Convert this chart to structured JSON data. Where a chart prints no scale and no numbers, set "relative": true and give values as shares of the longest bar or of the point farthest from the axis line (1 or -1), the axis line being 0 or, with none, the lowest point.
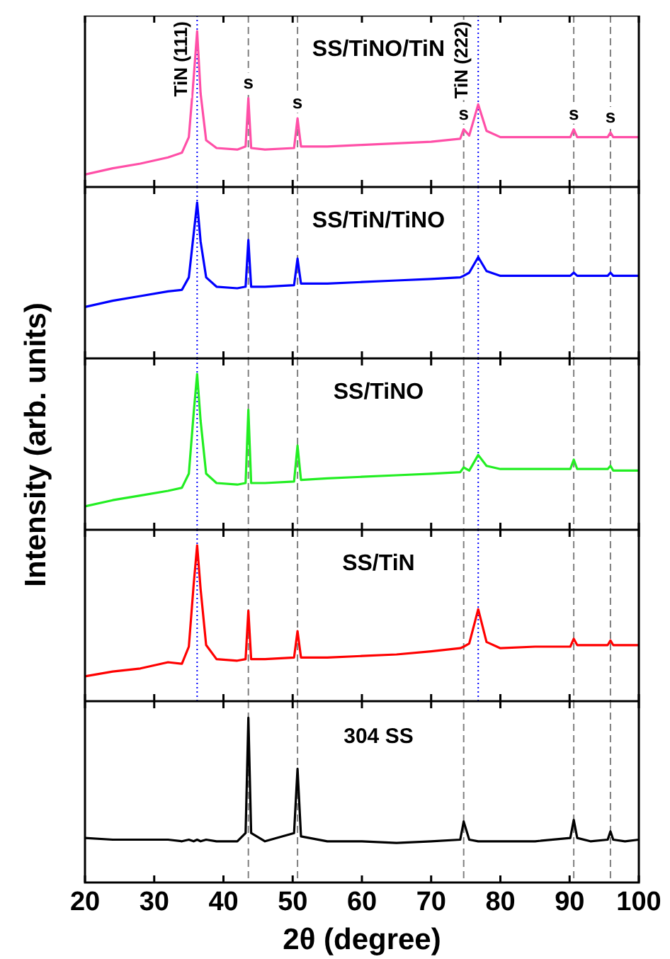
{
  "chart_data": [
    {
      "type": "line",
      "relative": true,
      "title": "SS/TiNO/TiN",
      "x": [
        20,
        24,
        28,
        32,
        34,
        35,
        35.7,
        36.2,
        36.7,
        37.5,
        39,
        42,
        43.2,
        43.6,
        44,
        46,
        50.2,
        50.7,
        51.2,
        55,
        60,
        65,
        70,
        74.2,
        74.7,
        75.5,
        76.8,
        78,
        80,
        85,
        90.1,
        90.6,
        91.1,
        93,
        95.5,
        95.9,
        96.3,
        98,
        100
      ],
      "series": [
        {
          "color": "#ff4fa7",
          "values": [
            0.08,
            0.12,
            0.15,
            0.19,
            0.22,
            0.32,
            0.7,
            1.0,
            0.6,
            0.3,
            0.25,
            0.24,
            0.26,
            0.57,
            0.25,
            0.24,
            0.25,
            0.44,
            0.26,
            0.26,
            0.27,
            0.28,
            0.29,
            0.31,
            0.37,
            0.33,
            0.53,
            0.36,
            0.32,
            0.32,
            0.32,
            0.37,
            0.32,
            0.32,
            0.32,
            0.35,
            0.32,
            0.32,
            0.32
          ]
        }
      ],
      "xlim": [
        20,
        100
      ],
      "xticks": [
        20,
        30,
        40,
        50,
        60,
        70,
        80,
        90,
        100
      ],
      "tick_labels": false,
      "ref_lines": [
        {
          "axis": "x",
          "value": 36.2,
          "color": "#0000ff",
          "line_style": "dotted"
        },
        {
          "axis": "x",
          "value": 43.6,
          "color": "#808080",
          "line_style": "dashed"
        },
        {
          "axis": "x",
          "value": 50.7,
          "color": "#808080",
          "line_style": "dashed"
        },
        {
          "axis": "x",
          "value": 74.7,
          "color": "#808080",
          "line_style": "dashed"
        },
        {
          "axis": "x",
          "value": 76.8,
          "color": "#0000ff",
          "line_style": "dotted"
        },
        {
          "axis": "x",
          "value": 90.6,
          "color": "#808080",
          "line_style": "dashed"
        },
        {
          "axis": "x",
          "value": 95.9,
          "color": "#808080",
          "line_style": "dashed"
        }
      ],
      "annotations": [
        {
          "text": "TiN (111)",
          "x": 36.2,
          "y": 1.0
        },
        {
          "text": "s",
          "x": 43.6,
          "y": 0.57
        },
        {
          "text": "s",
          "x": 50.7,
          "y": 0.44
        },
        {
          "text": "s",
          "x": 74.7,
          "y": 0.37
        },
        {
          "text": "TiN (222)",
          "x": 76.8,
          "y": 0.53
        },
        {
          "text": "s",
          "x": 90.6,
          "y": 0.37
        },
        {
          "text": "s",
          "x": 95.9,
          "y": 0.35
        }
      ]
    },
    {
      "type": "line",
      "relative": true,
      "title": "SS/TiN/TiNO",
      "x": [
        20,
        24,
        28,
        32,
        34,
        35,
        35.7,
        36.2,
        36.7,
        37.5,
        39,
        42,
        43.2,
        43.6,
        44,
        46,
        50.2,
        50.7,
        51.2,
        55,
        60,
        65,
        70,
        74.2,
        74.7,
        75.5,
        76.8,
        78,
        80,
        85,
        90.1,
        90.6,
        91.1,
        93,
        95.5,
        95.9,
        96.3,
        98,
        100
      ],
      "series": [
        {
          "color": "#0000ff",
          "values": [
            0.33,
            0.37,
            0.4,
            0.43,
            0.44,
            0.52,
            0.8,
            1.0,
            0.75,
            0.52,
            0.46,
            0.45,
            0.46,
            0.76,
            0.46,
            0.46,
            0.47,
            0.64,
            0.48,
            0.48,
            0.49,
            0.5,
            0.51,
            0.52,
            0.53,
            0.55,
            0.65,
            0.56,
            0.53,
            0.53,
            0.53,
            0.55,
            0.53,
            0.53,
            0.53,
            0.55,
            0.53,
            0.53,
            0.53
          ]
        }
      ],
      "xlim": [
        20,
        100
      ],
      "xticks": [
        20,
        30,
        40,
        50,
        60,
        70,
        80,
        90,
        100
      ],
      "tick_labels": false,
      "ref_lines": [
        {
          "axis": "x",
          "value": 36.2,
          "color": "#0000ff",
          "line_style": "dotted"
        },
        {
          "axis": "x",
          "value": 43.6,
          "color": "#808080",
          "line_style": "dashed"
        },
        {
          "axis": "x",
          "value": 50.7,
          "color": "#808080",
          "line_style": "dashed"
        },
        {
          "axis": "x",
          "value": 74.7,
          "color": "#808080",
          "line_style": "dashed"
        },
        {
          "axis": "x",
          "value": 76.8,
          "color": "#0000ff",
          "line_style": "dotted"
        },
        {
          "axis": "x",
          "value": 90.6,
          "color": "#808080",
          "line_style": "dashed"
        },
        {
          "axis": "x",
          "value": 95.9,
          "color": "#808080",
          "line_style": "dashed"
        }
      ]
    },
    {
      "type": "line",
      "relative": true,
      "title": "SS/TiNO",
      "ylabel": "Intensity (arb. units)",
      "x": [
        20,
        24,
        28,
        32,
        34,
        35,
        35.7,
        36.2,
        36.7,
        37.5,
        39,
        42,
        43.2,
        43.6,
        44,
        46,
        50.2,
        50.7,
        51.2,
        55,
        60,
        65,
        70,
        74.2,
        74.7,
        75.5,
        76.8,
        78,
        80,
        85,
        90.1,
        90.6,
        91.1,
        93,
        95.5,
        95.9,
        96.3,
        98,
        100
      ],
      "series": [
        {
          "color": "#22ee22",
          "values": [
            0.15,
            0.19,
            0.22,
            0.25,
            0.27,
            0.36,
            0.75,
            1.0,
            0.7,
            0.36,
            0.3,
            0.29,
            0.3,
            0.77,
            0.3,
            0.3,
            0.31,
            0.54,
            0.32,
            0.33,
            0.34,
            0.35,
            0.36,
            0.37,
            0.4,
            0.38,
            0.48,
            0.41,
            0.39,
            0.39,
            0.39,
            0.45,
            0.39,
            0.39,
            0.39,
            0.41,
            0.38,
            0.38,
            0.38
          ]
        }
      ],
      "xlim": [
        20,
        100
      ],
      "xticks": [
        20,
        30,
        40,
        50,
        60,
        70,
        80,
        90,
        100
      ],
      "tick_labels": false,
      "ref_lines": [
        {
          "axis": "x",
          "value": 36.2,
          "color": "#0000ff",
          "line_style": "dotted"
        },
        {
          "axis": "x",
          "value": 43.6,
          "color": "#808080",
          "line_style": "dashed"
        },
        {
          "axis": "x",
          "value": 50.7,
          "color": "#808080",
          "line_style": "dashed"
        },
        {
          "axis": "x",
          "value": 74.7,
          "color": "#808080",
          "line_style": "dashed"
        },
        {
          "axis": "x",
          "value": 76.8,
          "color": "#0000ff",
          "line_style": "dotted"
        },
        {
          "axis": "x",
          "value": 90.6,
          "color": "#808080",
          "line_style": "dashed"
        },
        {
          "axis": "x",
          "value": 95.9,
          "color": "#808080",
          "line_style": "dashed"
        }
      ]
    },
    {
      "type": "line",
      "relative": true,
      "title": "SS/TiN",
      "x": [
        20,
        24,
        28,
        32,
        34,
        35,
        35.7,
        36.2,
        36.7,
        37.5,
        39,
        42,
        43.2,
        43.6,
        44,
        46,
        50.2,
        50.7,
        51.2,
        55,
        60,
        65,
        70,
        74.2,
        74.7,
        75.5,
        76.8,
        78,
        80,
        85,
        90.1,
        90.6,
        91.1,
        93,
        95.5,
        95.9,
        96.3,
        98,
        100
      ],
      "series": [
        {
          "color": "#ff0000",
          "values": [
            0.16,
            0.19,
            0.21,
            0.25,
            0.24,
            0.35,
            0.75,
            1.0,
            0.72,
            0.36,
            0.27,
            0.26,
            0.27,
            0.58,
            0.27,
            0.27,
            0.28,
            0.45,
            0.28,
            0.28,
            0.29,
            0.3,
            0.32,
            0.34,
            0.35,
            0.37,
            0.59,
            0.38,
            0.34,
            0.35,
            0.35,
            0.4,
            0.36,
            0.36,
            0.36,
            0.39,
            0.36,
            0.36,
            0.36
          ]
        }
      ],
      "xlim": [
        20,
        100
      ],
      "xticks": [
        20,
        30,
        40,
        50,
        60,
        70,
        80,
        90,
        100
      ],
      "tick_labels": false,
      "ref_lines": [
        {
          "axis": "x",
          "value": 36.2,
          "color": "#0000ff",
          "line_style": "dotted"
        },
        {
          "axis": "x",
          "value": 43.6,
          "color": "#808080",
          "line_style": "dashed"
        },
        {
          "axis": "x",
          "value": 50.7,
          "color": "#808080",
          "line_style": "dashed"
        },
        {
          "axis": "x",
          "value": 74.7,
          "color": "#808080",
          "line_style": "dashed"
        },
        {
          "axis": "x",
          "value": 76.8,
          "color": "#0000ff",
          "line_style": "dotted"
        },
        {
          "axis": "x",
          "value": 90.6,
          "color": "#808080",
          "line_style": "dashed"
        },
        {
          "axis": "x",
          "value": 95.9,
          "color": "#808080",
          "line_style": "dashed"
        }
      ]
    },
    {
      "type": "line",
      "relative": true,
      "title": "304 SS",
      "xlabel": "2θ (degree)",
      "x": [
        20,
        24,
        28,
        32,
        34,
        35,
        35.7,
        36.2,
        36.7,
        37.5,
        39,
        42,
        43.2,
        43.6,
        44,
        46,
        50.2,
        50.7,
        51.2,
        55,
        60,
        65,
        70,
        74.2,
        74.7,
        75.5,
        76.8,
        78,
        80,
        85,
        90.1,
        90.6,
        91.1,
        93,
        95.5,
        95.9,
        96.3,
        98,
        100
      ],
      "series": [
        {
          "color": "#000000",
          "values": [
            0.27,
            0.26,
            0.26,
            0.26,
            0.25,
            0.26,
            0.25,
            0.26,
            0.25,
            0.26,
            0.25,
            0.25,
            0.3,
            1.0,
            0.3,
            0.25,
            0.3,
            0.69,
            0.28,
            0.25,
            0.25,
            0.24,
            0.25,
            0.26,
            0.37,
            0.26,
            0.25,
            0.25,
            0.25,
            0.25,
            0.27,
            0.38,
            0.27,
            0.25,
            0.26,
            0.31,
            0.26,
            0.25,
            0.26
          ]
        }
      ],
      "xlim": [
        20,
        100
      ],
      "xticks": [
        20,
        30,
        40,
        50,
        60,
        70,
        80,
        90,
        100
      ],
      "tick_labels": "x",
      "ref_lines": [
        {
          "axis": "x",
          "value": 43.6,
          "color": "#808080",
          "line_style": "dashed"
        },
        {
          "axis": "x",
          "value": 50.7,
          "color": "#808080",
          "line_style": "dashed"
        },
        {
          "axis": "x",
          "value": 74.7,
          "color": "#808080",
          "line_style": "dashed"
        },
        {
          "axis": "x",
          "value": 90.6,
          "color": "#808080",
          "line_style": "dashed"
        },
        {
          "axis": "x",
          "value": 95.9,
          "color": "#808080",
          "line_style": "dashed"
        }
      ]
    }
  ]
}
